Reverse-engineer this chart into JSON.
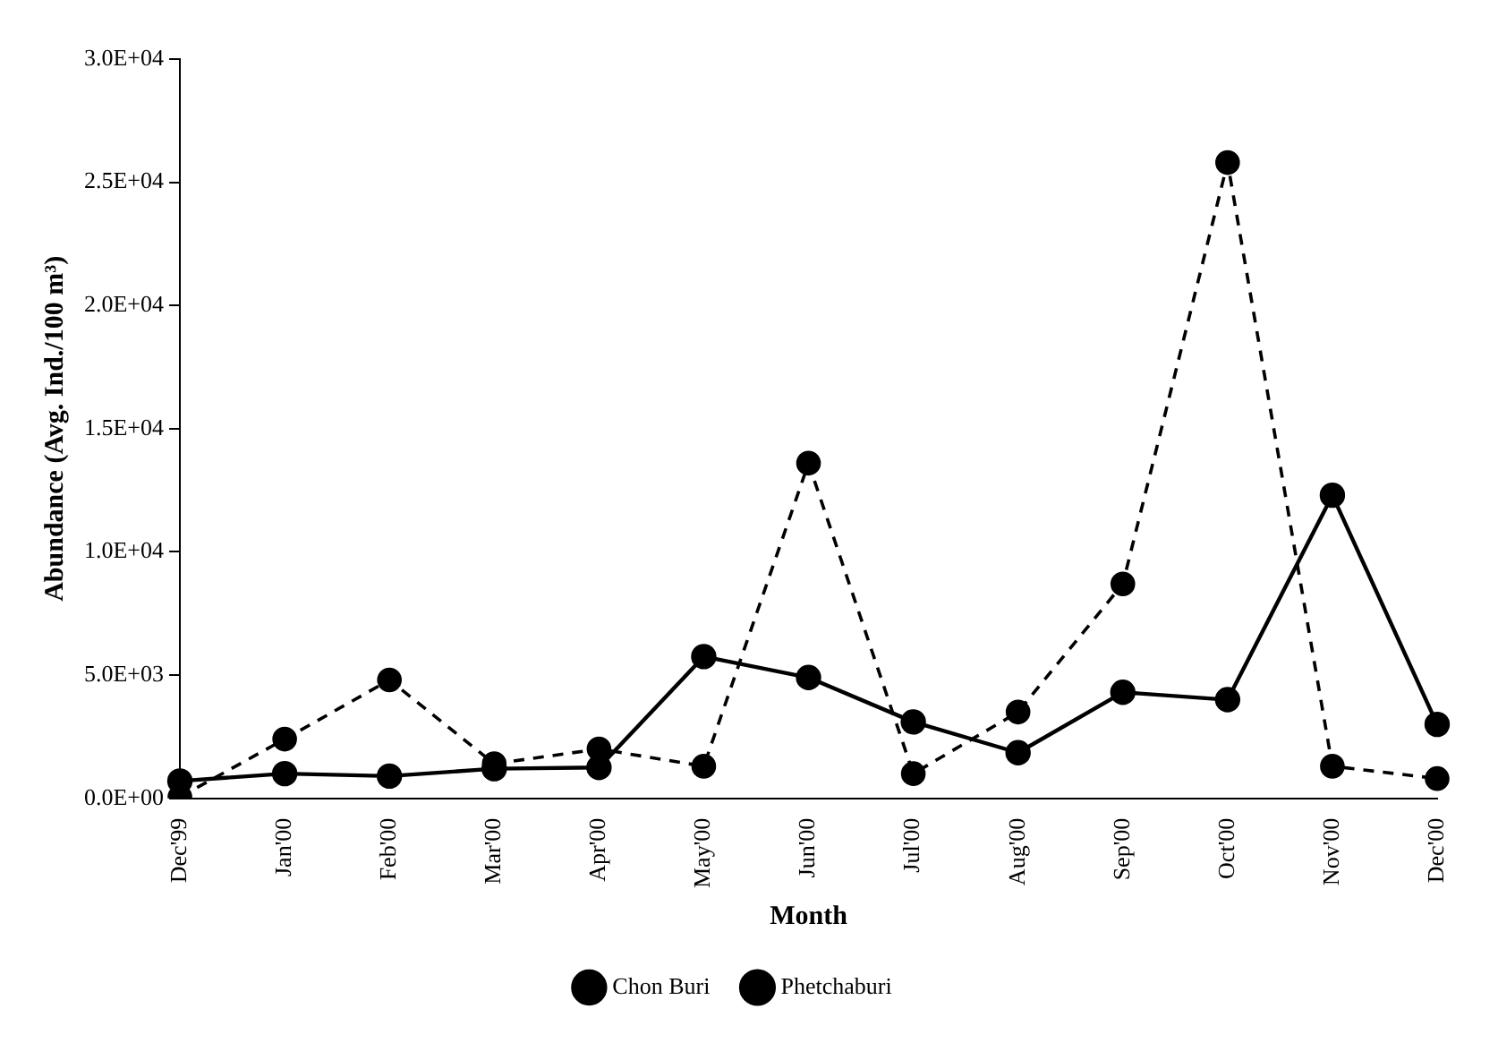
{
  "chart_data": {
    "type": "line",
    "xlabel": "Month",
    "ylabel": "Abundance (Avg. Ind./100 m³)",
    "categories": [
      "Dec'99",
      "Jan'00",
      "Feb'00",
      "Mar'00",
      "Apr'00",
      "May'00",
      "Jun'00",
      "Jul'00",
      "Aug'00",
      "Sep'00",
      "Oct'00",
      "Nov'00",
      "Dec'00"
    ],
    "series": [
      {
        "name": "Chon Buri",
        "color": "#000000",
        "line_style": "dashed",
        "values": [
          50,
          2400,
          4800,
          1400,
          2000,
          1300,
          13600,
          1000,
          3500,
          8700,
          25800,
          1300,
          800
        ]
      },
      {
        "name": "Phetchaburi",
        "color": "#000000",
        "line_style": "solid",
        "values": [
          700,
          1000,
          900,
          1200,
          1250,
          5750,
          4900,
          3100,
          1850,
          4300,
          4000,
          12300,
          3000
        ]
      }
    ],
    "ylim": [
      0,
      30000
    ],
    "yticks": [
      {
        "value": 0,
        "label": "0.0E+00"
      },
      {
        "value": 5000,
        "label": "5.0E+03"
      },
      {
        "value": 10000,
        "label": "1.0E+04"
      },
      {
        "value": 15000,
        "label": "1.5E+04"
      },
      {
        "value": 20000,
        "label": "2.0E+04"
      },
      {
        "value": 25000,
        "label": "2.5E+04"
      },
      {
        "value": 30000,
        "label": "3.0E+04"
      }
    ],
    "grid": false,
    "legend": "bottom",
    "marker": "circle"
  }
}
